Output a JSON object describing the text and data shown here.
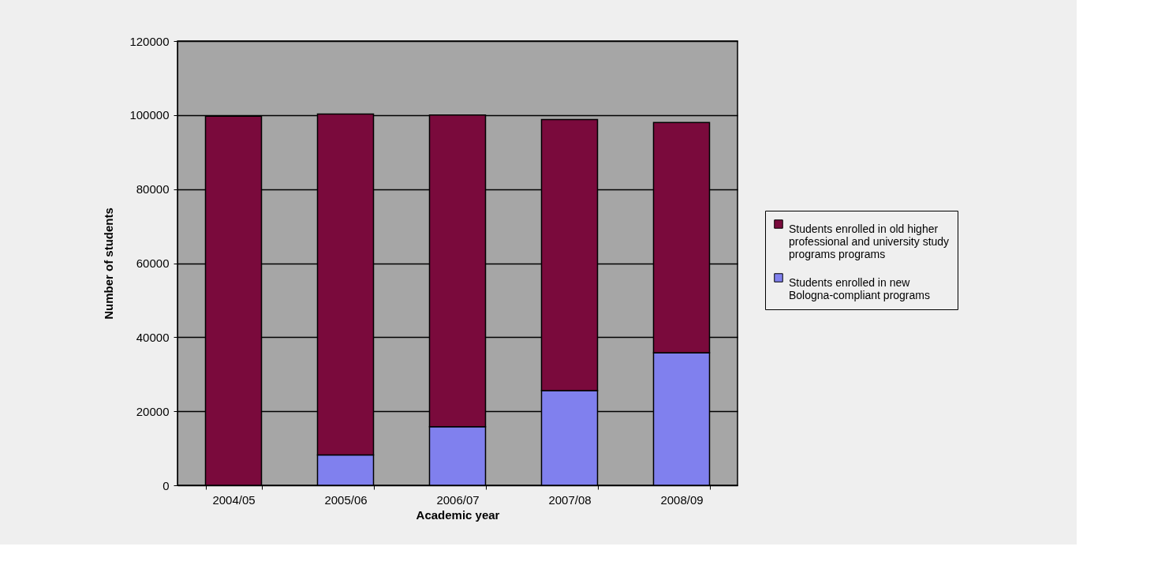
{
  "chart_data": {
    "type": "bar",
    "stacked": true,
    "xlabel": "Academic year",
    "ylabel": "Number of students",
    "categories": [
      "2004/05",
      "2005/06",
      "2006/07",
      "2007/08",
      "2008/09"
    ],
    "series": [
      {
        "name": "Students enrolled in new Bologna-compliant programs",
        "color": "#8080ee",
        "values": [
          0,
          8200,
          15800,
          25600,
          35800
        ]
      },
      {
        "name": "Students enrolled in old  higher professional and university study programs programs",
        "color": "#7a0a3c",
        "values": [
          99700,
          92100,
          84200,
          73200,
          62200
        ]
      }
    ],
    "ylim": [
      0,
      120000
    ],
    "yticks": [
      0,
      20000,
      40000,
      60000,
      80000,
      100000,
      120000
    ],
    "grid": "y",
    "legend": "right"
  }
}
